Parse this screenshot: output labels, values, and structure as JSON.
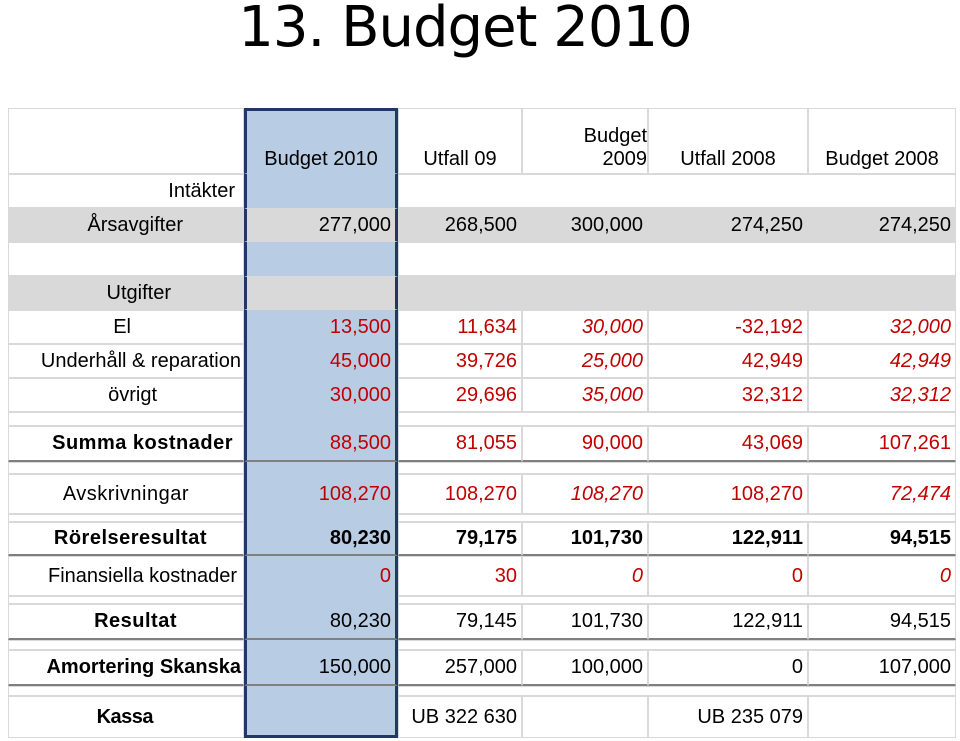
{
  "title": "13. Budget 2010",
  "headers": [
    "Budget 2010",
    "Utfall 09",
    "Budget 2009",
    "Utfall 2008",
    "Budget 2008"
  ],
  "budget2009_line1": "Budget",
  "budget2009_line2": "2009",
  "rows": [
    {
      "label": "Intäkter",
      "values": [
        "",
        "",
        "",
        "",
        ""
      ]
    },
    {
      "label": "Årsavgifter",
      "values": [
        "277,000",
        "268,500",
        "300,000",
        "274,250",
        "274,250"
      ]
    },
    {
      "label": "Utgifter",
      "values": [
        "",
        "",
        "",
        "",
        ""
      ]
    },
    {
      "label": "El",
      "values": [
        "13,500",
        "11,634",
        "30,000",
        "-32,192",
        "32,000"
      ]
    },
    {
      "label": "Underhåll & reparation",
      "values": [
        "45,000",
        "39,726",
        "25,000",
        "42,949",
        "42,949"
      ]
    },
    {
      "label": "övrigt",
      "values": [
        "30,000",
        "29,696",
        "35,000",
        "32,312",
        "32,312"
      ]
    },
    {
      "label": "Summa kostnader",
      "values": [
        "88,500",
        "81,055",
        "90,000",
        "43,069",
        "107,261"
      ]
    },
    {
      "label": "Avskrivningar",
      "values": [
        "108,270",
        "108,270",
        "108,270",
        "108,270",
        "72,474"
      ]
    },
    {
      "label": "Rörelseresultat",
      "values": [
        "80,230",
        "79,175",
        "101,730",
        "122,911",
        "94,515"
      ]
    },
    {
      "label": "Finansiella kostnader",
      "values": [
        "0",
        "30",
        "0",
        "0",
        "0"
      ]
    },
    {
      "label": "Resultat",
      "values": [
        "80,230",
        "79,145",
        "101,730",
        "122,911",
        "94,515"
      ]
    },
    {
      "label": "Amortering Skanska",
      "values": [
        "150,000",
        "257,000",
        "100,000",
        "0",
        "107,000"
      ]
    },
    {
      "label": "Kassa",
      "values": [
        "",
        "UB 322 630",
        "",
        "UB 235 079",
        ""
      ]
    }
  ],
  "colors": {
    "highlight": "#b8cce4",
    "highlight_border": "#1f3864",
    "red": "#c00000",
    "gray": "#d9d9d9"
  }
}
